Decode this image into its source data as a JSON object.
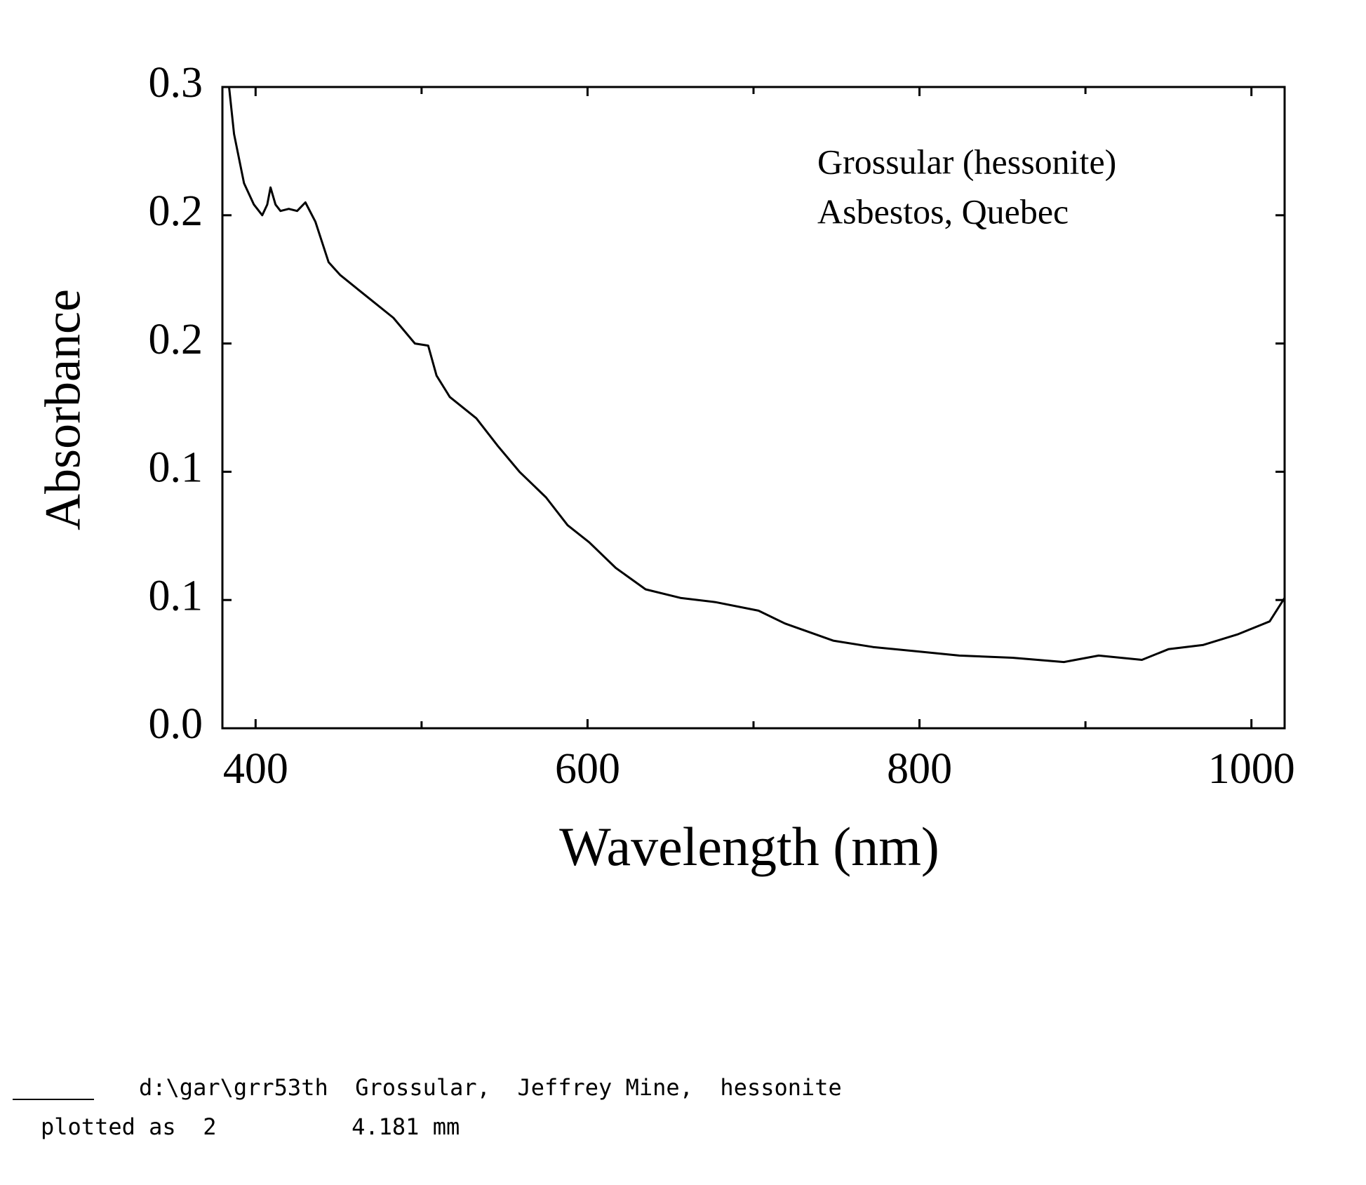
{
  "chart_data": {
    "type": "line",
    "xlabel": "Wavelength (nm)",
    "ylabel": "Absorbance",
    "annotations": [
      "Grossular (hessonite)",
      "Asbestos, Quebec"
    ],
    "footer_lines": [
      "d:\\gar\\grr53th  Grossular,  Jeffrey Mine,  hessonite",
      "plotted as  2          4.181 mm"
    ],
    "xlim": [
      380,
      1020
    ],
    "xticks": [
      400,
      600,
      800,
      1000
    ],
    "xminor_ticks": [
      500,
      700,
      900
    ],
    "ylim": [
      0,
      0.3
    ],
    "yticks": [
      {
        "value": 0,
        "label": "0.0"
      },
      {
        "value": 0.06,
        "label": "0.1"
      },
      {
        "value": 0.12,
        "label": "0.1"
      },
      {
        "value": 0.18,
        "label": "0.2"
      },
      {
        "value": 0.24,
        "label": "0.2"
      },
      0.3
    ],
    "grid": false,
    "series": [
      {
        "color": "#000000",
        "x": [
          384,
          387,
          393,
          399,
          404,
          407,
          409,
          412,
          415,
          420,
          425,
          430,
          436,
          444,
          451,
          467,
          483,
          496,
          504,
          509,
          517,
          533,
          546,
          559,
          575,
          588,
          601,
          617,
          635,
          656,
          677,
          703,
          719,
          748,
          772,
          798,
          824,
          856,
          887,
          908,
          934,
          950,
          971,
          992,
          1011,
          1020
        ],
        "values": [
          0.3,
          0.278,
          0.255,
          0.245,
          0.24,
          0.245,
          0.253,
          0.245,
          0.242,
          0.243,
          0.242,
          0.246,
          0.237,
          0.218,
          0.212,
          0.202,
          0.192,
          0.18,
          0.179,
          0.165,
          0.155,
          0.145,
          0.132,
          0.12,
          0.108,
          0.095,
          0.087,
          0.075,
          0.065,
          0.061,
          0.059,
          0.055,
          0.049,
          0.041,
          0.038,
          0.036,
          0.034,
          0.033,
          0.031,
          0.034,
          0.032,
          0.037,
          0.039,
          0.044,
          0.05,
          0.061
        ]
      }
    ]
  }
}
